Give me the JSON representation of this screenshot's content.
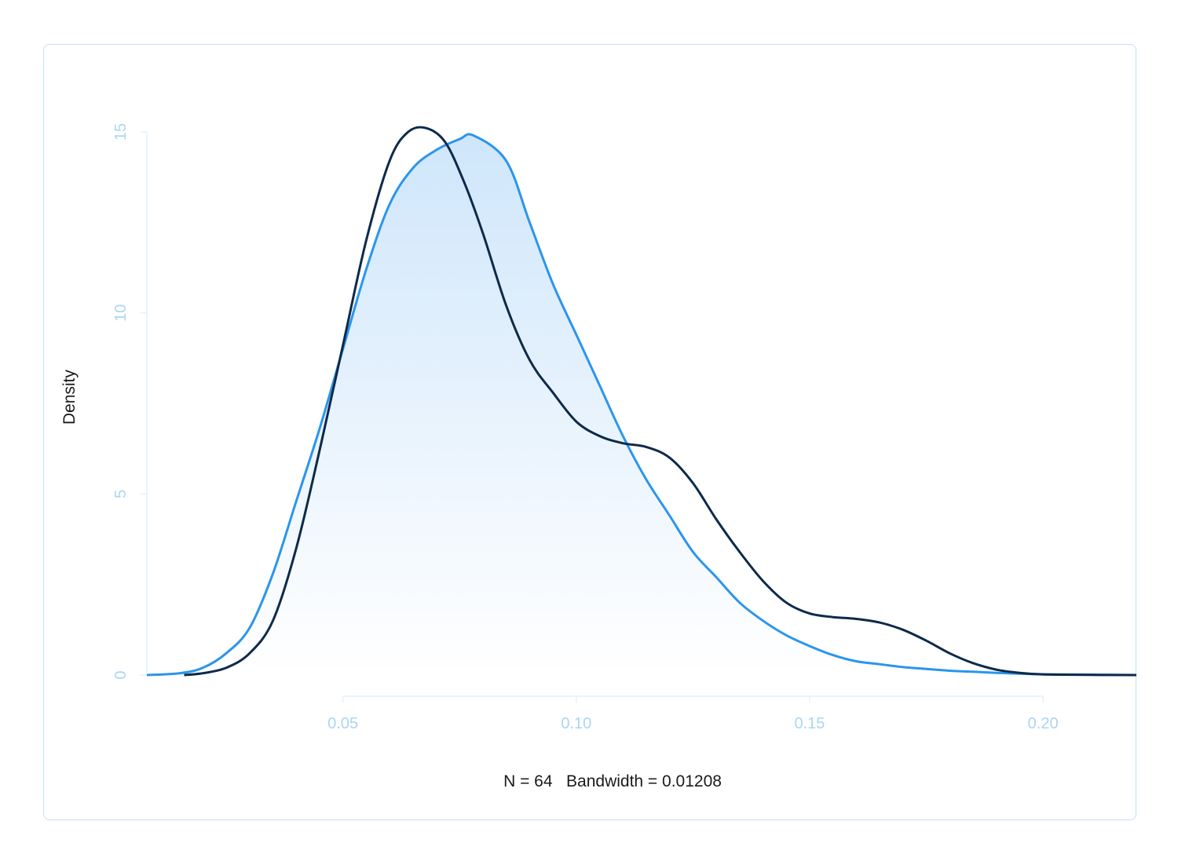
{
  "chart_data": {
    "type": "area",
    "title": "",
    "xlabel": "N = 64   Bandwidth = 0.01208",
    "ylabel": "Density",
    "xlim": [
      0.008,
      0.22
    ],
    "ylim": [
      0,
      15
    ],
    "x_ticks": [
      0.05,
      0.1,
      0.15,
      0.2
    ],
    "x_tick_labels": [
      "0.05",
      "0.10",
      "0.15",
      "0.20"
    ],
    "y_ticks": [
      0,
      5,
      10,
      15
    ],
    "y_tick_labels": [
      "0",
      "5",
      "10",
      "15"
    ],
    "grid": false,
    "colors": {
      "filled_curve": "#2b95ec",
      "fill_top": "#cfe6fb",
      "fill_bottom": "#ffffff",
      "outline_curve": "#0d2a4a",
      "axis": "#bfe1f7",
      "tick_text": "#a9d6f5"
    },
    "series": [
      {
        "style": "filled",
        "x": [
          0.008,
          0.015,
          0.02,
          0.025,
          0.03,
          0.035,
          0.04,
          0.045,
          0.05,
          0.055,
          0.06,
          0.065,
          0.07,
          0.075,
          0.078,
          0.085,
          0.09,
          0.095,
          0.1,
          0.105,
          0.11,
          0.115,
          0.12,
          0.125,
          0.13,
          0.135,
          0.14,
          0.145,
          0.15,
          0.155,
          0.16,
          0.165,
          0.17,
          0.175,
          0.18,
          0.185,
          0.19,
          0.195,
          0.2,
          0.21,
          0.22
        ],
        "y": [
          0.0,
          0.05,
          0.2,
          0.6,
          1.3,
          2.8,
          4.8,
          6.8,
          9.0,
          11.2,
          13.0,
          14.0,
          14.5,
          14.8,
          14.9,
          14.2,
          12.5,
          10.8,
          9.4,
          8.0,
          6.6,
          5.4,
          4.4,
          3.4,
          2.7,
          2.0,
          1.5,
          1.1,
          0.8,
          0.55,
          0.38,
          0.3,
          0.22,
          0.17,
          0.12,
          0.09,
          0.06,
          0.04,
          0.02,
          0.01,
          0.0
        ]
      },
      {
        "style": "line",
        "x": [
          0.016,
          0.02,
          0.025,
          0.03,
          0.035,
          0.04,
          0.045,
          0.05,
          0.055,
          0.06,
          0.064,
          0.068,
          0.072,
          0.076,
          0.08,
          0.085,
          0.09,
          0.095,
          0.1,
          0.105,
          0.11,
          0.115,
          0.12,
          0.125,
          0.13,
          0.135,
          0.14,
          0.145,
          0.15,
          0.155,
          0.16,
          0.165,
          0.17,
          0.175,
          0.18,
          0.185,
          0.19,
          0.195,
          0.2,
          0.21,
          0.22
        ],
        "y": [
          0.0,
          0.05,
          0.2,
          0.6,
          1.5,
          3.5,
          6.2,
          9.1,
          12.0,
          14.2,
          15.0,
          15.1,
          14.7,
          13.6,
          12.2,
          10.2,
          8.7,
          7.8,
          7.0,
          6.6,
          6.4,
          6.3,
          6.0,
          5.3,
          4.3,
          3.4,
          2.6,
          2.0,
          1.7,
          1.6,
          1.55,
          1.45,
          1.25,
          0.95,
          0.6,
          0.33,
          0.15,
          0.06,
          0.02,
          0.005,
          0.0
        ]
      }
    ]
  }
}
